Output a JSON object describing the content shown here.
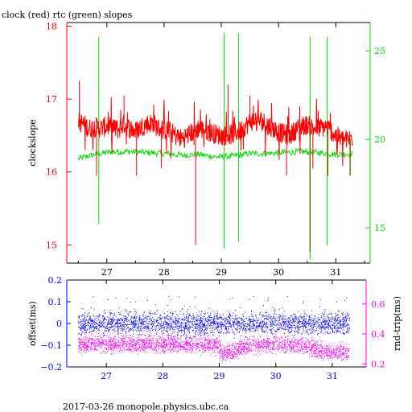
{
  "title": "clock (red) rtc (green) slopes",
  "footer": "2017-03-26  monopole.physics.ubc.ca",
  "colors": {
    "clock": "#ff0000",
    "rtc": "#00dd00",
    "overlap": "#6b6b00",
    "offset": "#0000ff",
    "rndtrip": "#ff00ff",
    "frame": "#000000"
  },
  "chart_data": [
    {
      "type": "line",
      "title": "clock (red) rtc (green) slopes",
      "xlabel": "",
      "ylabel": "clockslope",
      "y2label": "",
      "xlim": [
        26.3,
        31.6
      ],
      "ylim": [
        14.75,
        18.05
      ],
      "y2lim": [
        13.0,
        26.6
      ],
      "xticks": [
        27,
        28,
        29,
        30,
        31
      ],
      "yticks": [
        15,
        16,
        17,
        18
      ],
      "y2ticks": [
        15,
        20,
        25
      ],
      "series": [
        {
          "name": "clock",
          "axis": "left",
          "x": [
            26.5,
            26.6,
            26.7,
            26.8,
            26.9,
            27.0,
            27.1,
            27.2,
            27.3,
            27.4,
            27.5,
            27.6,
            27.7,
            27.8,
            27.9,
            28.0,
            28.1,
            28.2,
            28.3,
            28.4,
            28.5,
            28.6,
            28.7,
            28.8,
            28.9,
            29.0,
            29.1,
            29.2,
            29.3,
            29.4,
            29.5,
            29.6,
            29.7,
            29.8,
            29.9,
            30.0,
            30.1,
            30.2,
            30.3,
            30.4,
            30.5,
            30.6,
            30.7,
            30.8,
            30.9,
            31.0,
            31.1,
            31.2,
            31.3
          ],
          "values": [
            16.7,
            16.65,
            16.6,
            16.62,
            16.6,
            16.63,
            16.6,
            16.58,
            16.66,
            16.6,
            16.56,
            16.62,
            16.66,
            16.68,
            16.6,
            16.58,
            16.56,
            16.5,
            16.46,
            16.5,
            16.55,
            16.6,
            16.58,
            16.55,
            16.52,
            16.5,
            16.5,
            16.52,
            16.56,
            16.62,
            16.68,
            16.72,
            16.7,
            16.66,
            16.6,
            16.55,
            16.52,
            16.5,
            16.58,
            16.62,
            16.65,
            16.6,
            16.6,
            16.62,
            16.58,
            16.5,
            16.45,
            16.44,
            16.48
          ],
          "spikes": [
            {
              "x": 26.52,
              "value": 17.25
            },
            {
              "x": 26.82,
              "value": 15.95
            },
            {
              "x": 27.3,
              "value": 17.05
            },
            {
              "x": 27.52,
              "value": 15.95
            },
            {
              "x": 27.95,
              "value": 16.05
            },
            {
              "x": 28.55,
              "value": 15.0
            },
            {
              "x": 29.12,
              "value": 17.2
            },
            {
              "x": 29.5,
              "value": 17.05
            },
            {
              "x": 30.14,
              "value": 15.95
            },
            {
              "x": 30.6,
              "value": 16.05
            },
            {
              "x": 30.86,
              "value": 15.95
            },
            {
              "x": 31.25,
              "value": 16.0
            }
          ]
        },
        {
          "name": "rtc",
          "axis": "right",
          "x": [
            26.5,
            26.8,
            27.1,
            27.4,
            27.7,
            28.0,
            28.3,
            28.6,
            28.9,
            29.2,
            29.5,
            29.8,
            30.1,
            30.4,
            30.7,
            31.0,
            31.3
          ],
          "values": [
            18.9,
            19.15,
            19.3,
            19.3,
            19.25,
            19.2,
            19.1,
            19.15,
            19.0,
            19.05,
            19.2,
            19.2,
            19.25,
            19.3,
            19.25,
            19.15,
            19.2
          ],
          "spikes": [
            {
              "x": 26.86,
              "from": 15.2,
              "to": 25.8
            },
            {
              "x": 29.05,
              "from": 13.8,
              "to": 26.0
            },
            {
              "x": 29.3,
              "from": 14.2,
              "to": 26.0
            },
            {
              "x": 30.55,
              "from": 13.2,
              "to": 25.8
            },
            {
              "x": 30.85,
              "from": 14.0,
              "to": 25.8
            }
          ]
        }
      ]
    },
    {
      "type": "scatter",
      "xlabel": "",
      "ylabel": "offset(ms)",
      "y2label": "rnd-trip(ms)",
      "xlim": [
        26.3,
        31.6
      ],
      "ylim": [
        -0.2,
        0.2
      ],
      "y2lim": [
        0.18,
        0.76
      ],
      "xticks": [
        27,
        28,
        29,
        30,
        31
      ],
      "yticks": [
        -0.2,
        -0.1,
        0,
        0.1,
        0.2
      ],
      "ytick_labels": [
        "−0.2",
        "−0.1",
        "0",
        "0.1",
        "0.2"
      ],
      "y2ticks": [
        0.2,
        0.4,
        0.6
      ],
      "y2tick_labels": [
        "0.2",
        "0.4",
        "0.6"
      ],
      "series": [
        {
          "name": "offset",
          "axis": "left",
          "x": [
            26.5,
            27.0,
            27.5,
            28.0,
            28.5,
            29.0,
            29.5,
            30.0,
            30.5,
            31.0,
            31.3
          ],
          "values": [
            0.0,
            0.0,
            0.0,
            0.0,
            0.0,
            0.0,
            0.0,
            0.0,
            0.0,
            0.0,
            0.0
          ],
          "spread": 0.035
        },
        {
          "name": "rnd-trip",
          "axis": "right",
          "x": [
            26.5,
            27.0,
            27.5,
            28.0,
            28.5,
            29.0,
            29.05,
            29.5,
            30.0,
            30.5,
            30.85,
            31.0,
            31.3
          ],
          "values": [
            0.33,
            0.33,
            0.33,
            0.33,
            0.33,
            0.32,
            0.26,
            0.32,
            0.33,
            0.33,
            0.28,
            0.28,
            0.28
          ],
          "spread": 0.04
        }
      ]
    }
  ]
}
